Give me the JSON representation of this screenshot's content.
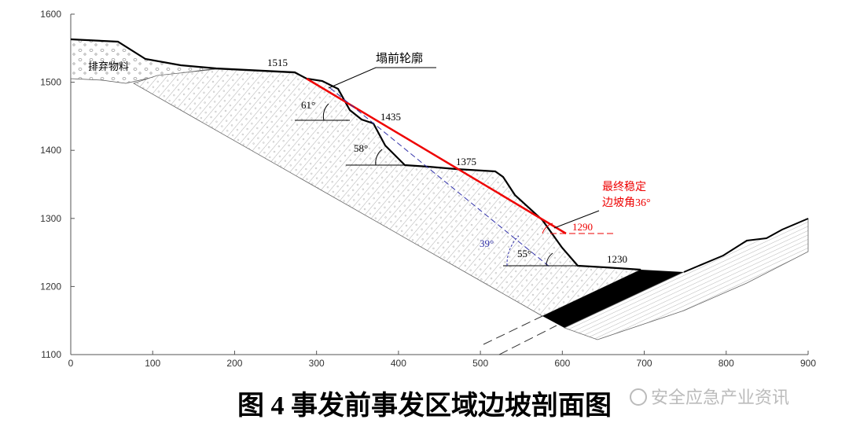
{
  "axes": {
    "xticks": [
      0,
      100,
      200,
      300,
      400,
      500,
      600,
      700,
      800,
      900
    ],
    "yticks": [
      1100,
      1200,
      1300,
      1400,
      1500,
      1600
    ]
  },
  "labels": {
    "waste": "排弃物料",
    "elev_1515": "1515",
    "profile_before": "塌前轮廓",
    "angle_61": "61°",
    "elev_1435": "1435",
    "angle_58": "58°",
    "elev_1375": "1375",
    "final_angle_1": "最终稳定",
    "final_angle_2": "边坡角36°",
    "elev_1290": "1290",
    "angle_39": "39°",
    "angle_55": "55°",
    "elev_1230": "1230"
  },
  "caption": "图 4  事发前事发区域边坡剖面图",
  "watermark": "安全应急产业资讯"
}
